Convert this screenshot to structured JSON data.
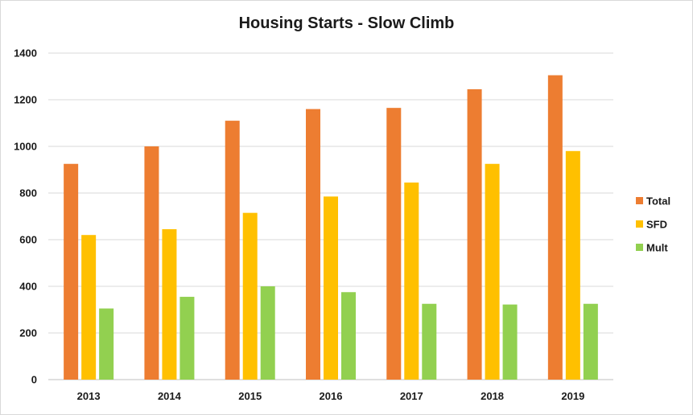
{
  "chart_data": {
    "type": "bar",
    "title": "Housing Starts - Slow Climb",
    "xlabel": "",
    "ylabel": "",
    "categories": [
      "2013",
      "2014",
      "2015",
      "2016",
      "2017",
      "2018",
      "2019"
    ],
    "series": [
      {
        "name": "Total",
        "color": "#ED7D31",
        "values": [
          925,
          1000,
          1110,
          1160,
          1165,
          1245,
          1305
        ]
      },
      {
        "name": "SFD",
        "color": "#FFC000",
        "values": [
          620,
          645,
          715,
          785,
          845,
          925,
          980
        ]
      },
      {
        "name": "Mult",
        "color": "#92D050",
        "values": [
          305,
          355,
          400,
          375,
          325,
          322,
          325
        ]
      }
    ],
    "ylim": [
      0,
      1400
    ],
    "yticks": [
      0,
      200,
      400,
      600,
      800,
      1000,
      1200,
      1400
    ],
    "grid": true,
    "legend": "right"
  }
}
